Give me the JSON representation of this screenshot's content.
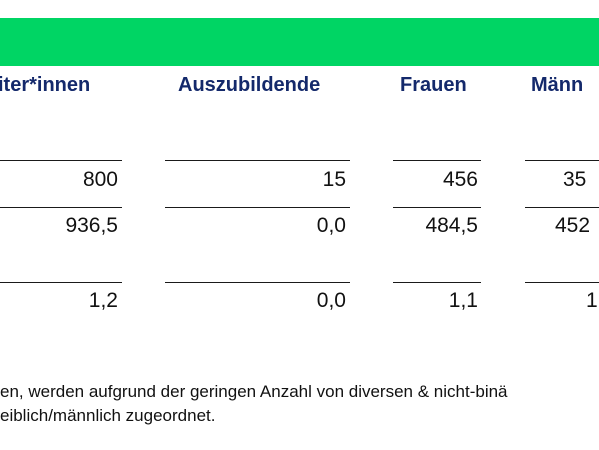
{
  "table": {
    "columns": [
      "iter*innen",
      "Auszubildende",
      "Frauen",
      "Männ"
    ],
    "rows": [
      [
        "800",
        "15",
        "456",
        "35"
      ],
      [
        "936,5",
        "0,0",
        "484,5",
        "452"
      ],
      [
        "1,2",
        "0,0",
        "1,1",
        "1"
      ]
    ]
  },
  "footnote": {
    "line1": "en, werden aufgrund der geringen Anzahl von diversen & nicht-binä",
    "line2": "eiblich/männlich zugeordnet."
  },
  "colors": {
    "banner": "#00d564",
    "header_text": "#14296b"
  }
}
